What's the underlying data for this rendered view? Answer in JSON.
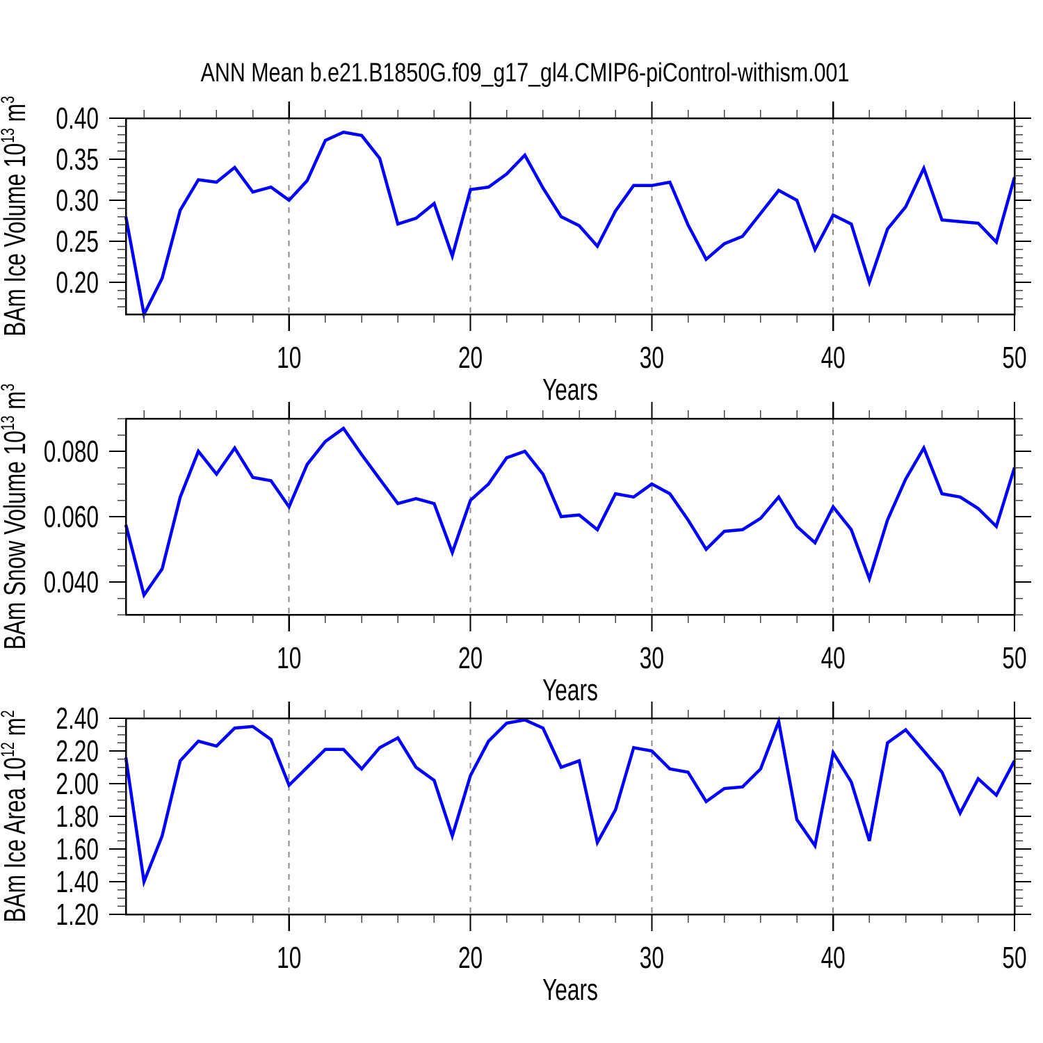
{
  "title": "ANN Mean b.e21.B1850G.f09_g17_gl4.CMIP6-piControl-withism.001",
  "style": {
    "line_color": "#0000ff",
    "axis_color": "#000000",
    "minor_tick_color": "#444444",
    "grid_color": "#8a8a8a",
    "background": "#ffffff",
    "text_color": "#000000"
  },
  "chart_data": [
    {
      "type": "line",
      "id": "ice-volume",
      "ylabel_text": "BAm Ice Volume 10^13 m^3",
      "ylabel_parts": [
        {
          "t": "BAm Ice Volume 10"
        },
        {
          "t": "13",
          "sup": true
        },
        {
          "t": " m"
        },
        {
          "t": "3",
          "sup": true
        }
      ],
      "xlabel": "Years",
      "xlim": [
        1,
        50
      ],
      "ylim": [
        0.161,
        0.4
      ],
      "yticks": [
        {
          "v": 0.2,
          "label": "0.20"
        },
        {
          "v": 0.25,
          "label": "0.25"
        },
        {
          "v": 0.3,
          "label": "0.30"
        },
        {
          "v": 0.35,
          "label": "0.35"
        },
        {
          "v": 0.4,
          "label": "0.40"
        }
      ],
      "yminor_step": 0.01,
      "xticks": [
        10,
        20,
        30,
        40,
        50
      ],
      "xminor_step": 2,
      "grid_x": [
        10,
        20,
        30,
        40
      ],
      "x_start": 1,
      "values": [
        0.28,
        0.161,
        0.205,
        0.288,
        0.325,
        0.322,
        0.34,
        0.31,
        0.316,
        0.3,
        0.324,
        0.373,
        0.383,
        0.379,
        0.351,
        0.271,
        0.278,
        0.296,
        0.232,
        0.313,
        0.316,
        0.332,
        0.355,
        0.315,
        0.28,
        0.269,
        0.244,
        0.287,
        0.318,
        0.318,
        0.322,
        0.27,
        0.228,
        0.247,
        0.256,
        0.284,
        0.312,
        0.3,
        0.24,
        0.282,
        0.271,
        0.2,
        0.265,
        0.292,
        0.339,
        0.276,
        0.274,
        0.272,
        0.249,
        0.328
      ]
    },
    {
      "type": "line",
      "id": "snow-volume",
      "ylabel_text": "BAm Snow Volume 10^13 m^3",
      "ylabel_parts": [
        {
          "t": "BAm Snow Volume 10"
        },
        {
          "t": "13",
          "sup": true
        },
        {
          "t": " m"
        },
        {
          "t": "3",
          "sup": true
        }
      ],
      "xlabel": "Years",
      "xlim": [
        1,
        50
      ],
      "ylim": [
        0.03,
        0.09
      ],
      "yticks": [
        {
          "v": 0.04,
          "label": "0.040"
        },
        {
          "v": 0.06,
          "label": "0.060"
        },
        {
          "v": 0.08,
          "label": "0.080"
        }
      ],
      "yminor_step": 0.005,
      "xticks": [
        10,
        20,
        30,
        40,
        50
      ],
      "xminor_step": 2,
      "grid_x": [
        10,
        20,
        30,
        40
      ],
      "x_start": 1,
      "values": [
        0.0575,
        0.036,
        0.044,
        0.066,
        0.08,
        0.073,
        0.081,
        0.072,
        0.071,
        0.063,
        0.076,
        0.083,
        0.087,
        0.079,
        0.0715,
        0.064,
        0.0655,
        0.064,
        0.049,
        0.065,
        0.07,
        0.078,
        0.08,
        0.073,
        0.06,
        0.0605,
        0.056,
        0.067,
        0.066,
        0.07,
        0.067,
        0.059,
        0.05,
        0.0555,
        0.056,
        0.0595,
        0.066,
        0.057,
        0.052,
        0.063,
        0.056,
        0.041,
        0.059,
        0.0715,
        0.081,
        0.067,
        0.066,
        0.0625,
        0.057,
        0.075
      ]
    },
    {
      "type": "line",
      "id": "ice-area",
      "ylabel_text": "BAm Ice Area 10^12 m^2",
      "ylabel_parts": [
        {
          "t": "BAm Ice Area 10"
        },
        {
          "t": "12",
          "sup": true
        },
        {
          "t": " m"
        },
        {
          "t": "2",
          "sup": true
        }
      ],
      "xlabel": "Years",
      "xlim": [
        1,
        50
      ],
      "ylim": [
        1.2,
        2.4
      ],
      "yticks": [
        {
          "v": 1.2,
          "label": "1.20"
        },
        {
          "v": 1.4,
          "label": "1.40"
        },
        {
          "v": 1.6,
          "label": "1.60"
        },
        {
          "v": 1.8,
          "label": "1.80"
        },
        {
          "v": 2.0,
          "label": "2.00"
        },
        {
          "v": 2.2,
          "label": "2.20"
        },
        {
          "v": 2.4,
          "label": "2.40"
        }
      ],
      "yminor_step": 0.05,
      "xticks": [
        10,
        20,
        30,
        40,
        50
      ],
      "xminor_step": 2,
      "grid_x": [
        10,
        20,
        30,
        40
      ],
      "x_start": 1,
      "values": [
        2.16,
        1.4,
        1.68,
        2.14,
        2.26,
        2.23,
        2.34,
        2.35,
        2.27,
        1.99,
        2.1,
        2.21,
        2.21,
        2.09,
        2.22,
        2.28,
        2.1,
        2.02,
        1.68,
        2.05,
        2.26,
        2.37,
        2.39,
        2.34,
        2.1,
        2.14,
        1.64,
        1.84,
        2.22,
        2.2,
        2.09,
        2.07,
        1.89,
        1.97,
        1.98,
        2.09,
        2.38,
        1.78,
        1.62,
        2.19,
        2.01,
        1.65,
        2.25,
        2.33,
        2.2,
        2.07,
        1.82,
        2.03,
        1.93,
        2.14
      ]
    }
  ]
}
